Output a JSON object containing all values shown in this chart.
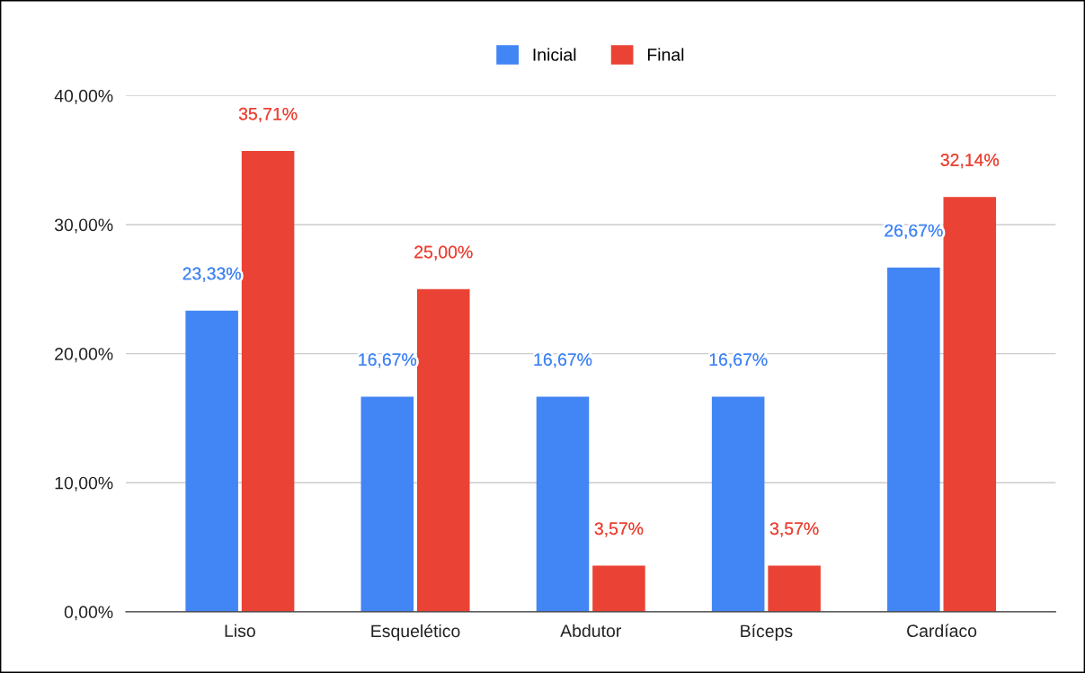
{
  "chart_data": {
    "type": "bar",
    "categories": [
      "Liso",
      "Esquelético",
      "Abdutor",
      "Bíceps",
      "Cardíaco"
    ],
    "series": [
      {
        "name": "Inicial",
        "color": "#4285f4",
        "values": [
          23.33,
          16.67,
          16.67,
          16.67,
          26.67
        ],
        "value_labels": [
          "23,33%",
          "16,67%",
          "16,67%",
          "16,67%",
          "26,67%"
        ]
      },
      {
        "name": "Final",
        "color": "#ea4335",
        "values": [
          35.71,
          25.0,
          3.57,
          3.57,
          32.14
        ],
        "value_labels": [
          "35,71%",
          "25,00%",
          "3,57%",
          "3,57%",
          "32,14%"
        ]
      }
    ],
    "ylim": [
      0,
      40
    ],
    "yticks": [
      {
        "value": 0,
        "label": "0,00%"
      },
      {
        "value": 10,
        "label": "10,00%"
      },
      {
        "value": 20,
        "label": "20,00%"
      },
      {
        "value": 30,
        "label": "30,00%"
      },
      {
        "value": 40,
        "label": "40,00%"
      }
    ],
    "grid": "y",
    "legend": "top"
  }
}
